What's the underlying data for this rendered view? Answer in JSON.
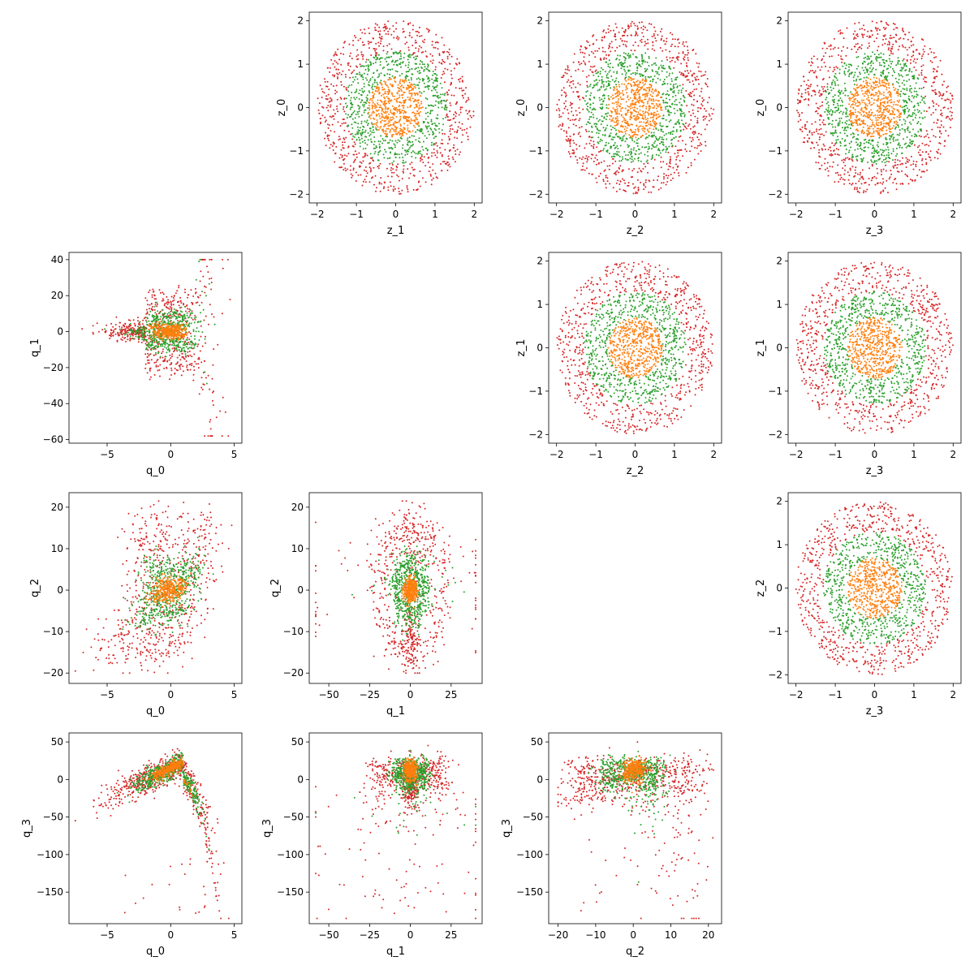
{
  "figure": {
    "description_free": true
  },
  "chart_data": [
    {
      "type": "scatter",
      "panel": "z_0 vs z_1",
      "xlabel": "z_1",
      "ylabel": "z_0",
      "xlim": [
        -2.2,
        2.2
      ],
      "ylim": [
        -2.2,
        2.2
      ],
      "xticks": [
        -2,
        -1,
        0,
        1,
        2
      ],
      "yticks": [
        -2,
        -1,
        0,
        1,
        2
      ],
      "series": [
        {
          "color": "#d62728",
          "shape": "annulus",
          "r_inner": 1.3,
          "r_outer": 2.0,
          "n": 700
        },
        {
          "color": "#2ca02c",
          "shape": "annulus",
          "r_inner": 0.7,
          "r_outer": 1.3,
          "n": 650
        },
        {
          "color": "#ff7f0e",
          "shape": "disk",
          "r_inner": 0.0,
          "r_outer": 0.7,
          "n": 500
        }
      ],
      "grid": false
    },
    {
      "type": "scatter",
      "panel": "z_0 vs z_2",
      "xlabel": "z_2",
      "ylabel": "z_0",
      "xlim": [
        -2.2,
        2.2
      ],
      "ylim": [
        -2.2,
        2.2
      ],
      "xticks": [
        -2,
        -1,
        0,
        1,
        2
      ],
      "yticks": [
        -2,
        -1,
        0,
        1,
        2
      ],
      "series": [
        {
          "color": "#d62728",
          "shape": "annulus",
          "r_inner": 1.3,
          "r_outer": 2.0,
          "n": 700
        },
        {
          "color": "#2ca02c",
          "shape": "annulus",
          "r_inner": 0.7,
          "r_outer": 1.3,
          "n": 650
        },
        {
          "color": "#ff7f0e",
          "shape": "disk",
          "r_inner": 0.0,
          "r_outer": 0.7,
          "n": 500
        }
      ],
      "grid": false
    },
    {
      "type": "scatter",
      "panel": "z_0 vs z_3",
      "xlabel": "z_3",
      "ylabel": "z_0",
      "xlim": [
        -2.2,
        2.2
      ],
      "ylim": [
        -2.2,
        2.2
      ],
      "xticks": [
        -2,
        -1,
        0,
        1,
        2
      ],
      "yticks": [
        -2,
        -1,
        0,
        1,
        2
      ],
      "series": [
        {
          "color": "#d62728",
          "shape": "annulus",
          "r_inner": 1.3,
          "r_outer": 2.0,
          "n": 700
        },
        {
          "color": "#2ca02c",
          "shape": "annulus",
          "r_inner": 0.7,
          "r_outer": 1.3,
          "n": 650
        },
        {
          "color": "#ff7f0e",
          "shape": "disk",
          "r_inner": 0.0,
          "r_outer": 0.7,
          "n": 500
        }
      ],
      "grid": false
    },
    {
      "type": "scatter",
      "panel": "z_1 vs z_2",
      "xlabel": "z_2",
      "ylabel": "z_1",
      "xlim": [
        -2.2,
        2.2
      ],
      "ylim": [
        -2.2,
        2.2
      ],
      "xticks": [
        -2,
        -1,
        0,
        1,
        2
      ],
      "yticks": [
        -2,
        -1,
        0,
        1,
        2
      ],
      "series": [
        {
          "color": "#d62728",
          "shape": "annulus",
          "r_inner": 1.3,
          "r_outer": 2.0,
          "n": 700
        },
        {
          "color": "#2ca02c",
          "shape": "annulus",
          "r_inner": 0.7,
          "r_outer": 1.3,
          "n": 650
        },
        {
          "color": "#ff7f0e",
          "shape": "disk",
          "r_inner": 0.0,
          "r_outer": 0.7,
          "n": 500
        }
      ],
      "grid": false
    },
    {
      "type": "scatter",
      "panel": "z_1 vs z_3",
      "xlabel": "z_3",
      "ylabel": "z_1",
      "xlim": [
        -2.2,
        2.2
      ],
      "ylim": [
        -2.2,
        2.2
      ],
      "xticks": [
        -2,
        -1,
        0,
        1,
        2
      ],
      "yticks": [
        -2,
        -1,
        0,
        1,
        2
      ],
      "series": [
        {
          "color": "#d62728",
          "shape": "annulus",
          "r_inner": 1.3,
          "r_outer": 2.0,
          "n": 700
        },
        {
          "color": "#2ca02c",
          "shape": "annulus",
          "r_inner": 0.7,
          "r_outer": 1.3,
          "n": 650
        },
        {
          "color": "#ff7f0e",
          "shape": "disk",
          "r_inner": 0.0,
          "r_outer": 0.7,
          "n": 500
        }
      ],
      "grid": false
    },
    {
      "type": "scatter",
      "panel": "z_2 vs z_3",
      "xlabel": "z_3",
      "ylabel": "z_2",
      "xlim": [
        -2.2,
        2.2
      ],
      "ylim": [
        -2.2,
        2.2
      ],
      "xticks": [
        -2,
        -1,
        0,
        1,
        2
      ],
      "yticks": [
        -2,
        -1,
        0,
        1,
        2
      ],
      "series": [
        {
          "color": "#d62728",
          "shape": "annulus",
          "r_inner": 1.3,
          "r_outer": 2.0,
          "n": 700
        },
        {
          "color": "#2ca02c",
          "shape": "annulus",
          "r_inner": 0.7,
          "r_outer": 1.3,
          "n": 650
        },
        {
          "color": "#ff7f0e",
          "shape": "disk",
          "r_inner": 0.0,
          "r_outer": 0.7,
          "n": 500
        }
      ],
      "grid": false
    },
    {
      "type": "scatter",
      "panel": "q_1 vs q_0",
      "xlabel": "q_0",
      "ylabel": "q_1",
      "xlim": [
        -8.0,
        5.6
      ],
      "ylim": [
        -62,
        44
      ],
      "xticks": [
        -5,
        0,
        5
      ],
      "yticks": [
        -60,
        -40,
        -20,
        0,
        20,
        40
      ],
      "series": [
        {
          "color": "#d62728"
        },
        {
          "color": "#2ca02c"
        },
        {
          "color": "#ff7f0e"
        }
      ],
      "grid": false
    },
    {
      "type": "scatter",
      "panel": "q_2 vs q_0",
      "xlabel": "q_0",
      "ylabel": "q_2",
      "xlim": [
        -8.0,
        5.6
      ],
      "ylim": [
        -22.5,
        23.5
      ],
      "xticks": [
        -5,
        0,
        5
      ],
      "yticks": [
        -20,
        -10,
        0,
        10,
        20
      ],
      "series": [
        {
          "color": "#d62728"
        },
        {
          "color": "#2ca02c"
        },
        {
          "color": "#ff7f0e"
        }
      ],
      "grid": false
    },
    {
      "type": "scatter",
      "panel": "q_2 vs q_1",
      "xlabel": "q_1",
      "ylabel": "q_2",
      "xlim": [
        -62,
        44
      ],
      "ylim": [
        -22.5,
        23.5
      ],
      "xticks": [
        -50,
        -25,
        0,
        25
      ],
      "yticks": [
        -20,
        -10,
        0,
        10,
        20
      ],
      "series": [
        {
          "color": "#d62728"
        },
        {
          "color": "#2ca02c"
        },
        {
          "color": "#ff7f0e"
        }
      ],
      "grid": false
    },
    {
      "type": "scatter",
      "panel": "q_3 vs q_0",
      "xlabel": "q_0",
      "ylabel": "q_3",
      "xlim": [
        -8.0,
        5.6
      ],
      "ylim": [
        -192,
        62
      ],
      "xticks": [
        -5,
        0,
        5
      ],
      "yticks": [
        -150,
        -100,
        -50,
        0,
        50
      ],
      "series": [
        {
          "color": "#d62728"
        },
        {
          "color": "#2ca02c"
        },
        {
          "color": "#ff7f0e"
        }
      ],
      "grid": false
    },
    {
      "type": "scatter",
      "panel": "q_3 vs q_1",
      "xlabel": "q_1",
      "ylabel": "q_3",
      "xlim": [
        -62,
        44
      ],
      "ylim": [
        -192,
        62
      ],
      "xticks": [
        -50,
        -25,
        0,
        25
      ],
      "yticks": [
        -150,
        -100,
        -50,
        0,
        50
      ],
      "series": [
        {
          "color": "#d62728"
        },
        {
          "color": "#2ca02c"
        },
        {
          "color": "#ff7f0e"
        }
      ],
      "grid": false
    },
    {
      "type": "scatter",
      "panel": "q_3 vs q_2",
      "xlabel": "q_2",
      "ylabel": "q_3",
      "xlim": [
        -22.5,
        23.5
      ],
      "ylim": [
        -192,
        62
      ],
      "xticks": [
        -20,
        -10,
        0,
        10,
        20
      ],
      "yticks": [
        -150,
        -100,
        -50,
        0,
        50
      ],
      "series": [
        {
          "color": "#d62728"
        },
        {
          "color": "#2ca02c"
        },
        {
          "color": "#ff7f0e"
        }
      ],
      "grid": false
    }
  ]
}
